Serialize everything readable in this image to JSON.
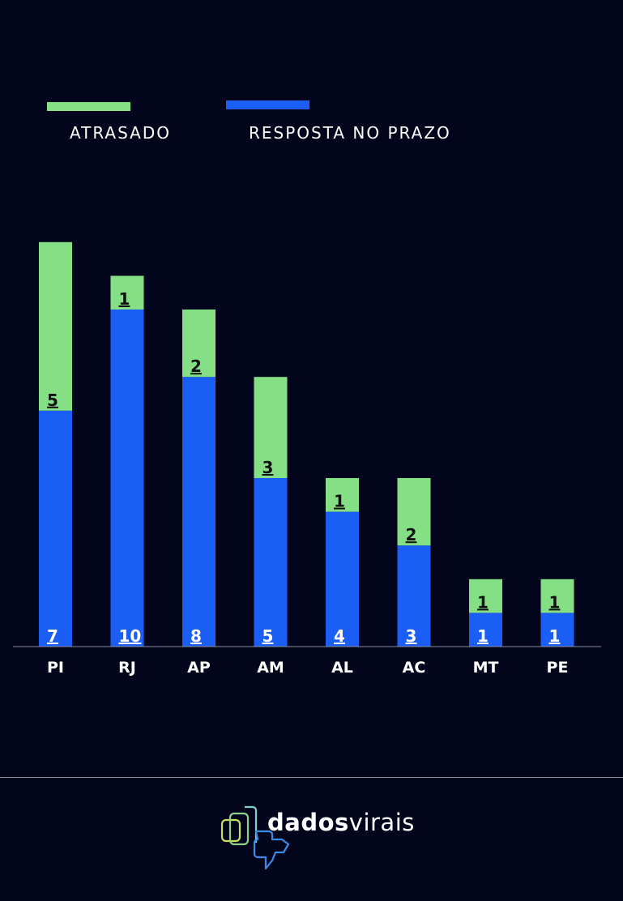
{
  "chart_data": {
    "type": "bar",
    "stacked": true,
    "categories": [
      "PI",
      "RJ",
      "AP",
      "AM",
      "AL",
      "AC",
      "MT",
      "PE"
    ],
    "series": [
      {
        "name": "RESPOSTA NO PRAZO",
        "values": [
          7,
          10,
          8,
          5,
          4,
          3,
          1,
          1
        ],
        "color": "#1a5ef5"
      },
      {
        "name": "ATRASADO",
        "values": [
          5,
          1,
          2,
          3,
          1,
          2,
          1,
          1
        ],
        "color": "#85e085"
      }
    ],
    "legend_position": "top-left",
    "grid": false
  },
  "legend": {
    "late_label": "ATRASADO",
    "late_color": "#85e085",
    "ontime_label": "RESPOSTA NO PRAZO",
    "ontime_color": "#1a5ef5"
  },
  "logo": {
    "text_bold": "dados",
    "text_light": "virais"
  }
}
